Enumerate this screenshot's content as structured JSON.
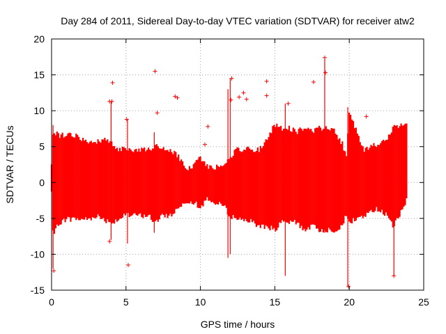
{
  "chart_data": {
    "type": "scatter",
    "title": "Day 284 of 2011, Sidereal Day-to-day VTEC variation (SDTVAR) for receiver atw2",
    "xlabel": "GPS time / hours",
    "ylabel": "SDTVAR / TECUs",
    "xlim": [
      0,
      25
    ],
    "ylim": [
      -15,
      20
    ],
    "x_ticks": [
      0,
      5,
      10,
      15,
      20,
      25
    ],
    "y_ticks": [
      -15,
      -10,
      -5,
      0,
      5,
      10,
      15,
      20
    ],
    "grid": true,
    "grid_style": "dotted",
    "marker": "plus",
    "color": "#ff0000",
    "envelope": [
      {
        "x": 0.0,
        "upper": 3.0,
        "lower": -1.5
      },
      {
        "x": 0.1,
        "upper": 7.5,
        "lower": -8.0
      },
      {
        "x": 0.5,
        "upper": 7.0,
        "lower": -6.0
      },
      {
        "x": 1.0,
        "upper": 7.0,
        "lower": -5.5
      },
      {
        "x": 1.5,
        "upper": 7.0,
        "lower": -5.5
      },
      {
        "x": 2.0,
        "upper": 6.5,
        "lower": -5.5
      },
      {
        "x": 2.5,
        "upper": 6.0,
        "lower": -5.5
      },
      {
        "x": 3.0,
        "upper": 6.0,
        "lower": -5.0
      },
      {
        "x": 3.5,
        "upper": 6.5,
        "lower": -5.5
      },
      {
        "x": 4.0,
        "upper": 6.0,
        "lower": -6.0
      },
      {
        "x": 4.5,
        "upper": 5.0,
        "lower": -5.5
      },
      {
        "x": 5.0,
        "upper": 5.0,
        "lower": -5.0
      },
      {
        "x": 5.5,
        "upper": 5.0,
        "lower": -5.0
      },
      {
        "x": 6.0,
        "upper": 5.0,
        "lower": -5.0
      },
      {
        "x": 6.5,
        "upper": 5.0,
        "lower": -5.0
      },
      {
        "x": 7.0,
        "upper": 5.5,
        "lower": -6.0
      },
      {
        "x": 7.5,
        "upper": 5.0,
        "lower": -5.0
      },
      {
        "x": 8.0,
        "upper": 5.0,
        "lower": -5.0
      },
      {
        "x": 8.5,
        "upper": 4.0,
        "lower": -4.0
      },
      {
        "x": 9.0,
        "upper": 2.5,
        "lower": -3.0
      },
      {
        "x": 9.5,
        "upper": 2.5,
        "lower": -3.0
      },
      {
        "x": 10.0,
        "upper": 4.0,
        "lower": -4.0
      },
      {
        "x": 10.5,
        "upper": 2.5,
        "lower": -2.5
      },
      {
        "x": 11.0,
        "upper": 2.5,
        "lower": -3.5
      },
      {
        "x": 11.5,
        "upper": 3.0,
        "lower": -3.5
      },
      {
        "x": 12.0,
        "upper": 4.0,
        "lower": -5.0
      },
      {
        "x": 12.5,
        "upper": 5.0,
        "lower": -5.5
      },
      {
        "x": 13.0,
        "upper": 5.0,
        "lower": -5.5
      },
      {
        "x": 13.5,
        "upper": 5.0,
        "lower": -6.0
      },
      {
        "x": 14.0,
        "upper": 5.0,
        "lower": -6.5
      },
      {
        "x": 14.5,
        "upper": 6.5,
        "lower": -6.5
      },
      {
        "x": 15.0,
        "upper": 8.5,
        "lower": -7.0
      },
      {
        "x": 15.5,
        "upper": 8.0,
        "lower": -6.0
      },
      {
        "x": 16.0,
        "upper": 8.0,
        "lower": -6.0
      },
      {
        "x": 16.5,
        "upper": 7.5,
        "lower": -6.0
      },
      {
        "x": 17.0,
        "upper": 8.0,
        "lower": -7.0
      },
      {
        "x": 17.5,
        "upper": 7.5,
        "lower": -6.5
      },
      {
        "x": 18.0,
        "upper": 8.0,
        "lower": -7.0
      },
      {
        "x": 18.5,
        "upper": 8.0,
        "lower": -7.0
      },
      {
        "x": 19.0,
        "upper": 7.5,
        "lower": -7.0
      },
      {
        "x": 19.5,
        "upper": 6.0,
        "lower": -6.5
      },
      {
        "x": 19.8,
        "upper": 4.0,
        "lower": -5.0
      },
      {
        "x": 20.0,
        "upper": 10.5,
        "lower": -6.0
      },
      {
        "x": 20.5,
        "upper": 7.5,
        "lower": -5.5
      },
      {
        "x": 21.0,
        "upper": 5.0,
        "lower": -5.0
      },
      {
        "x": 21.5,
        "upper": 5.5,
        "lower": -4.5
      },
      {
        "x": 22.0,
        "upper": 5.5,
        "lower": -4.0
      },
      {
        "x": 22.5,
        "upper": 6.5,
        "lower": -5.0
      },
      {
        "x": 23.0,
        "upper": 8.0,
        "lower": -6.5
      },
      {
        "x": 23.5,
        "upper": 8.5,
        "lower": -4.5
      },
      {
        "x": 23.85,
        "upper": 8.5,
        "lower": -3.0
      }
    ],
    "spikes": [
      {
        "x": 0.1,
        "low": -12.0,
        "high": 8.0
      },
      {
        "x": 4.0,
        "low": -8.0,
        "high": 11.2
      },
      {
        "x": 5.1,
        "low": -8.5,
        "high": 8.8
      },
      {
        "x": 6.9,
        "low": -7.0,
        "high": 7.0
      },
      {
        "x": 11.85,
        "low": -10.5,
        "high": 13.0
      },
      {
        "x": 12.0,
        "low": -10.0,
        "high": 14.5
      },
      {
        "x": 15.7,
        "low": -13.0,
        "high": 11.0
      },
      {
        "x": 18.35,
        "low": -7.0,
        "high": 17.3
      },
      {
        "x": 19.9,
        "low": -14.5,
        "high": 10.5
      },
      {
        "x": 23.0,
        "low": -13.0,
        "high": 8.0
      }
    ],
    "outliers": [
      {
        "x": 0.15,
        "y": -12.3
      },
      {
        "x": 3.9,
        "y": 11.3
      },
      {
        "x": 4.05,
        "y": 11.3
      },
      {
        "x": 4.1,
        "y": 13.9
      },
      {
        "x": 3.9,
        "y": -8.2
      },
      {
        "x": 5.05,
        "y": 8.8
      },
      {
        "x": 5.15,
        "y": -11.5
      },
      {
        "x": 6.95,
        "y": 15.5
      },
      {
        "x": 7.1,
        "y": 9.7
      },
      {
        "x": 8.3,
        "y": 12.0
      },
      {
        "x": 8.45,
        "y": 11.8
      },
      {
        "x": 10.5,
        "y": 7.8
      },
      {
        "x": 10.3,
        "y": 5.3
      },
      {
        "x": 12.1,
        "y": 14.5
      },
      {
        "x": 12.05,
        "y": 11.5
      },
      {
        "x": 12.9,
        "y": 12.5
      },
      {
        "x": 12.6,
        "y": 11.9
      },
      {
        "x": 13.1,
        "y": 11.6
      },
      {
        "x": 14.45,
        "y": 14.1
      },
      {
        "x": 14.45,
        "y": 12.1
      },
      {
        "x": 15.9,
        "y": 11.0
      },
      {
        "x": 17.6,
        "y": 14.0
      },
      {
        "x": 18.35,
        "y": 17.4
      },
      {
        "x": 18.4,
        "y": 15.3
      },
      {
        "x": 19.95,
        "y": -14.5
      },
      {
        "x": 21.15,
        "y": 9.2
      },
      {
        "x": 23.0,
        "y": -13.0
      }
    ]
  }
}
